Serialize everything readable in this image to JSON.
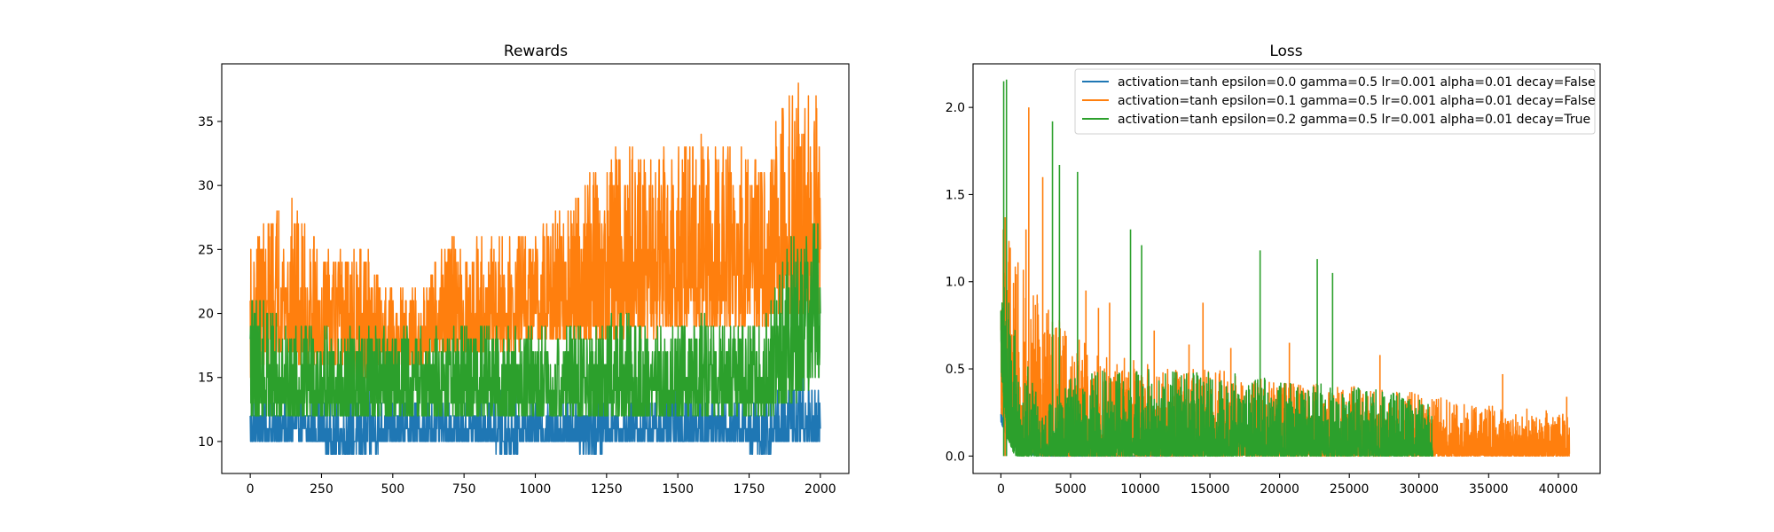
{
  "figure": {
    "chart_data": [
      {
        "type": "line",
        "title": "Rewards",
        "xlabel": "",
        "ylabel": "",
        "xlim": [
          -100,
          2100
        ],
        "ylim": [
          7.5,
          39.5
        ],
        "xticks": [
          0,
          250,
          500,
          750,
          1000,
          1250,
          1500,
          1750,
          2000
        ],
        "yticks": [
          10,
          15,
          20,
          25,
          30,
          35
        ],
        "grid": false,
        "note": "Episode reward traces; values approximated from the figure (x = episode index 0-2000, envelope bands per series).",
        "series": [
          {
            "color": "#1f77b4",
            "x": [
              0,
              100,
              200,
              300,
              400,
              500,
              600,
              700,
              800,
              900,
              1000,
              1100,
              1200,
              1300,
              1400,
              1500,
              1600,
              1700,
              1800,
              1900,
              2000
            ],
            "low": [
              10,
              10,
              10,
              9,
              9,
              10,
              10,
              10,
              10,
              9,
              10,
              10,
              9,
              10,
              10,
              10,
              10,
              10,
              9,
              10,
              10
            ],
            "high": [
              14,
              13,
              13,
              13,
              14,
              13,
              13,
              13,
              13,
              14,
              13,
              13,
              15,
              13,
              13,
              14,
              13,
              14,
              13,
              15,
              15
            ]
          },
          {
            "color": "#ff7f0e",
            "x": [
              0,
              100,
              200,
              300,
              400,
              500,
              600,
              700,
              800,
              900,
              1000,
              1100,
              1200,
              1300,
              1400,
              1500,
              1600,
              1700,
              1800,
              1900,
              2000
            ],
            "low": [
              15,
              17,
              16,
              16,
              15,
              16,
              16,
              17,
              17,
              17,
              18,
              18,
              18,
              18,
              18,
              19,
              19,
              19,
              19,
              20,
              20
            ],
            "high": [
              25,
              30,
              27,
              25,
              25,
              22,
              22,
              26,
              26,
              26,
              27,
              28,
              32,
              33,
              33,
              33,
              34,
              33,
              33,
              38,
              37
            ]
          },
          {
            "color": "#2ca02c",
            "x": [
              0,
              100,
              200,
              300,
              400,
              500,
              600,
              700,
              800,
              900,
              1000,
              1100,
              1200,
              1300,
              1400,
              1500,
              1600,
              1700,
              1800,
              1900,
              2000
            ],
            "low": [
              12,
              12,
              12,
              12,
              12,
              12,
              12,
              12,
              12,
              12,
              12,
              12,
              12,
              12,
              12,
              12,
              12,
              12,
              12,
              13,
              15
            ],
            "high": [
              22,
              20,
              19,
              19,
              19,
              19,
              19,
              19,
              19,
              19,
              19,
              19,
              19,
              20,
              19,
              19,
              20,
              19,
              20,
              26,
              28
            ]
          }
        ]
      },
      {
        "type": "line",
        "title": "Loss",
        "xlabel": "",
        "ylabel": "",
        "xlim": [
          -2000,
          43000
        ],
        "ylim": [
          -0.1,
          2.25
        ],
        "xticks": [
          0,
          5000,
          10000,
          15000,
          20000,
          25000,
          30000,
          35000,
          40000
        ],
        "yticks": [
          0.0,
          0.5,
          1.0,
          1.5,
          2.0
        ],
        "grid": false,
        "legend_position": "upper right",
        "note": "Training-step loss traces; values approximated from the figure.",
        "series": [
          {
            "name": "activation=tanh epsilon=0.0 gamma=0.5 lr=0.001 alpha=0.01 decay=False",
            "color": "#1f77b4",
            "x": [
              0,
              200,
              500,
              800,
              1200,
              1600,
              2000,
              2500,
              3000,
              4000,
              6000,
              10000,
              14000
            ],
            "low": [
              0.2,
              0.15,
              0.1,
              0.07,
              0.04,
              0.02,
              0.01,
              0.005,
              0.0,
              0.0,
              0.0,
              0.0,
              0.0
            ],
            "high": [
              0.3,
              0.25,
              0.2,
              0.15,
              0.1,
              0.06,
              0.04,
              0.02,
              0.01,
              0.005,
              0.003,
              0.002,
              0.002
            ]
          },
          {
            "name": "activation=tanh epsilon=0.1 gamma=0.5 lr=0.001 alpha=0.01 decay=False",
            "color": "#ff7f0e",
            "x": [
              0,
              1000,
              2000,
              3000,
              5000,
              7000,
              10000,
              13000,
              16000,
              19000,
              22000,
              25000,
              28000,
              31000,
              34000,
              37000,
              40800
            ],
            "low": [
              0.25,
              0.1,
              0.03,
              0.0,
              0.0,
              0.0,
              0.0,
              0.0,
              0.0,
              0.0,
              0.0,
              0.0,
              0.0,
              0.0,
              0.0,
              0.0,
              0.0
            ],
            "high": [
              1.37,
              1.2,
              1.0,
              0.9,
              0.7,
              0.6,
              0.55,
              0.5,
              0.5,
              0.45,
              0.42,
              0.4,
              0.38,
              0.35,
              0.3,
              0.28,
              0.25
            ],
            "spikes": [
              [
                300,
                1.37
              ],
              [
                1800,
                1.3
              ],
              [
                2000,
                2.0
              ],
              [
                3000,
                1.6
              ],
              [
                6100,
                0.95
              ],
              [
                7000,
                0.85
              ],
              [
                7800,
                0.88
              ],
              [
                11000,
                0.72
              ],
              [
                13500,
                0.64
              ],
              [
                14500,
                0.88
              ],
              [
                16500,
                0.62
              ],
              [
                20700,
                0.65
              ],
              [
                27200,
                0.58
              ],
              [
                36000,
                0.47
              ],
              [
                40600,
                0.34
              ]
            ]
          },
          {
            "name": "activation=tanh epsilon=0.2 gamma=0.5 lr=0.001 alpha=0.01 decay=True",
            "color": "#2ca02c",
            "x": [
              0,
              500,
              1000,
              2000,
              3000,
              5000,
              8000,
              10000,
              13000,
              16000,
              19000,
              22000,
              25000,
              28000,
              31000
            ],
            "low": [
              0.5,
              0.1,
              0.0,
              0.0,
              0.0,
              0.0,
              0.0,
              0.0,
              0.0,
              0.0,
              0.0,
              0.0,
              0.0,
              0.0,
              0.0
            ],
            "high": [
              1.25,
              1.0,
              0.8,
              0.5,
              0.25,
              0.45,
              0.5,
              0.5,
              0.5,
              0.48,
              0.45,
              0.42,
              0.4,
              0.38,
              0.3
            ],
            "spikes": [
              [
                200,
                2.15
              ],
              [
                400,
                2.16
              ],
              [
                3700,
                1.92
              ],
              [
                4200,
                1.67
              ],
              [
                5500,
                1.63
              ],
              [
                9300,
                1.3
              ],
              [
                10100,
                1.21
              ],
              [
                18600,
                1.18
              ],
              [
                22700,
                1.13
              ],
              [
                23800,
                1.05
              ]
            ]
          }
        ]
      }
    ]
  }
}
